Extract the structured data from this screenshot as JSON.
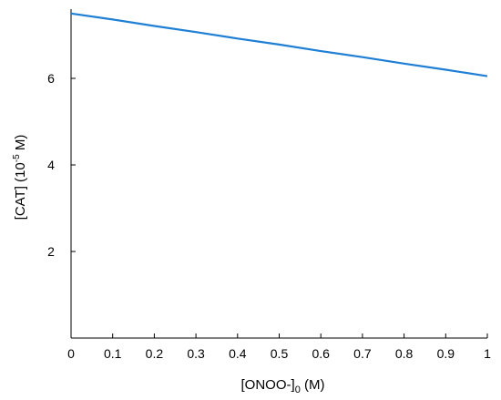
{
  "chart_data": {
    "type": "line",
    "xlabel": {
      "main": "[ONOO-]",
      "sub": "0",
      "after": " (M)"
    },
    "ylabel": {
      "main": "[CAT] (10",
      "sup": "-5",
      "after": " M)"
    },
    "xlim": [
      0,
      1
    ],
    "ylim": [
      0,
      7.6
    ],
    "x_ticks": [
      {
        "value": 0,
        "label": "0"
      },
      {
        "value": 0.1,
        "label": "0.1"
      },
      {
        "value": 0.2,
        "label": "0.2"
      },
      {
        "value": 0.3,
        "label": "0.3"
      },
      {
        "value": 0.4,
        "label": "0.4"
      },
      {
        "value": 0.5,
        "label": "0.5"
      },
      {
        "value": 0.6,
        "label": "0.6"
      },
      {
        "value": 0.7,
        "label": "0.7"
      },
      {
        "value": 0.8,
        "label": "0.8"
      },
      {
        "value": 0.9,
        "label": "0.9"
      },
      {
        "value": 1,
        "label": "1"
      }
    ],
    "y_ticks": [
      {
        "value": 2,
        "label": "2"
      },
      {
        "value": 4,
        "label": "4"
      },
      {
        "value": 6,
        "label": "6"
      }
    ],
    "grid": false,
    "series": [
      {
        "color": "#1f7fd4",
        "x": [
          0,
          0.1,
          0.2,
          0.3,
          0.4,
          0.5,
          0.6,
          0.7,
          0.8,
          0.9,
          1.0
        ],
        "y": [
          7.5,
          7.36,
          7.21,
          7.07,
          6.92,
          6.78,
          6.63,
          6.49,
          6.34,
          6.2,
          6.05
        ]
      }
    ]
  }
}
